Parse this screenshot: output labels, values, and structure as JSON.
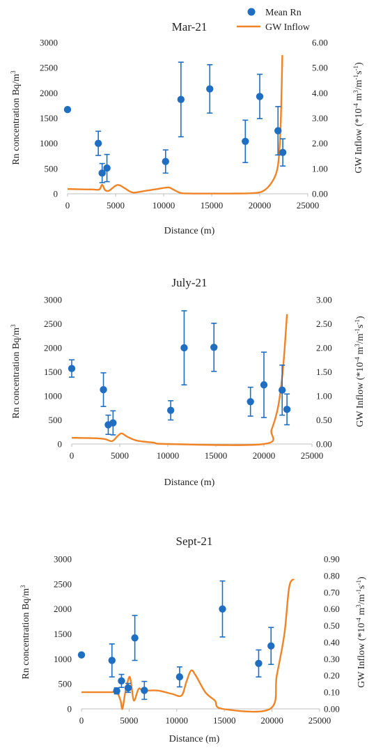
{
  "legend": {
    "mean_rn": "Mean Rn",
    "gw_inflow": "GW Inflow"
  },
  "colors": {
    "points": "#1f6ec2",
    "inflow": "#f08326",
    "axis": "#bfbfbf",
    "text": "#222222"
  },
  "chart_data": [
    {
      "type": "scatter",
      "title": "Mar-21",
      "xlabel": "Distance (m)",
      "ylabel": "Rn concentration Bq/m³",
      "y2label": "GW Inflow (*10⁻⁴ m³/m⁻¹s⁻¹)",
      "xlim": [
        0,
        25000
      ],
      "xticks": [
        "0",
        "5000",
        "10000",
        "15000",
        "20000",
        "25000"
      ],
      "ylim": [
        0,
        3000
      ],
      "yticks": [
        "0",
        "500",
        "1000",
        "1500",
        "2000",
        "2500",
        "3000"
      ],
      "y2lim": [
        0,
        6
      ],
      "y2ticks": [
        "0.00",
        "1.00",
        "2.00",
        "3.00",
        "4.00",
        "5.00",
        "6.00"
      ],
      "series": [
        {
          "name": "Mean Rn",
          "points": [
            {
              "x": 0,
              "y": 1670,
              "err": 0
            },
            {
              "x": 3200,
              "y": 1000,
              "err": 240
            },
            {
              "x": 3600,
              "y": 410,
              "err": 190
            },
            {
              "x": 4100,
              "y": 510,
              "err": 270
            },
            {
              "x": 10200,
              "y": 640,
              "err": 230
            },
            {
              "x": 11800,
              "y": 1870,
              "err": 740
            },
            {
              "x": 14800,
              "y": 2080,
              "err": 480
            },
            {
              "x": 18500,
              "y": 1040,
              "err": 420
            },
            {
              "x": 20000,
              "y": 1930,
              "err": 440
            },
            {
              "x": 21900,
              "y": 1250,
              "err": 480
            },
            {
              "x": 22400,
              "y": 820,
              "err": 270
            }
          ]
        },
        {
          "name": "GW Inflow",
          "axis": "right",
          "points": [
            [
              0,
              0.19
            ],
            [
              2500,
              0.17
            ],
            [
              3300,
              0.17
            ],
            [
              3600,
              0.36
            ],
            [
              3900,
              0.15
            ],
            [
              4300,
              0.12
            ],
            [
              5000,
              0.32
            ],
            [
              5400,
              0.34
            ],
            [
              6000,
              0.21
            ],
            [
              6800,
              0.05
            ],
            [
              8000,
              0.11
            ],
            [
              9500,
              0.2
            ],
            [
              10500,
              0.25
            ],
            [
              11000,
              0.17
            ],
            [
              11800,
              0.03
            ],
            [
              13000,
              0.01
            ],
            [
              17000,
              0.01
            ],
            [
              19000,
              0.02
            ],
            [
              20200,
              0.08
            ],
            [
              21000,
              0.32
            ],
            [
              21700,
              0.8
            ],
            [
              22000,
              1.5
            ],
            [
              22200,
              3.0
            ],
            [
              22350,
              5.5
            ]
          ]
        }
      ]
    },
    {
      "type": "scatter",
      "title": "July-21",
      "xlabel": "Distance (m)",
      "ylabel": "Rn concentration Bq/m³",
      "y2label": "GW Inflow (*10⁻⁴ m³/m⁻¹s⁻¹)",
      "xlim": [
        0,
        25000
      ],
      "xticks": [
        "0",
        "5000",
        "10000",
        "15000",
        "20000",
        "25000"
      ],
      "ylim": [
        0,
        3000
      ],
      "yticks": [
        "0",
        "500",
        "1000",
        "1500",
        "2000",
        "2500",
        "3000"
      ],
      "y2lim": [
        0,
        3
      ],
      "y2ticks": [
        "0.00",
        "0.50",
        "1.00",
        "1.50",
        "2.00",
        "2.50",
        "3.00"
      ],
      "series": [
        {
          "name": "Mean Rn",
          "points": [
            {
              "x": 0,
              "y": 1570,
              "err": 180
            },
            {
              "x": 3300,
              "y": 1130,
              "err": 350
            },
            {
              "x": 3800,
              "y": 400,
              "err": 200
            },
            {
              "x": 4300,
              "y": 440,
              "err": 250
            },
            {
              "x": 10300,
              "y": 700,
              "err": 200
            },
            {
              "x": 11700,
              "y": 2000,
              "err": 770
            },
            {
              "x": 14800,
              "y": 2010,
              "err": 500
            },
            {
              "x": 18600,
              "y": 880,
              "err": 300
            },
            {
              "x": 20000,
              "y": 1230,
              "err": 680
            },
            {
              "x": 21900,
              "y": 1120,
              "err": 520
            },
            {
              "x": 22400,
              "y": 720,
              "err": 320
            }
          ]
        },
        {
          "name": "GW Inflow",
          "axis": "right",
          "points": [
            [
              0,
              0.13
            ],
            [
              2500,
              0.12
            ],
            [
              3500,
              0.1
            ],
            [
              4200,
              0.06
            ],
            [
              4800,
              0.17
            ],
            [
              5200,
              0.22
            ],
            [
              5800,
              0.15
            ],
            [
              6800,
              0.07
            ],
            [
              8500,
              0.03
            ],
            [
              10000,
              0.0
            ],
            [
              20000,
              0.0
            ],
            [
              20800,
              0.3
            ],
            [
              21500,
              0.8
            ],
            [
              22000,
              1.6
            ],
            [
              22400,
              2.7
            ]
          ]
        }
      ]
    },
    {
      "type": "scatter",
      "title": "Sept-21",
      "xlabel": "Distance (m)",
      "ylabel": "Rn concentration Bq/m³",
      "y2label": "GW Inflow (*10⁻⁴ m³/m⁻¹s⁻¹)",
      "xlim": [
        0,
        25000
      ],
      "xticks": [
        "0",
        "5000",
        "10000",
        "15000",
        "20000",
        "25000"
      ],
      "ylim": [
        0,
        3000
      ],
      "yticks": [
        "0",
        "500",
        "1000",
        "1500",
        "2000",
        "2500",
        "3000"
      ],
      "y2lim": [
        0,
        0.9
      ],
      "y2ticks": [
        "0.00",
        "0.10",
        "0.20",
        "0.30",
        "0.40",
        "0.50",
        "0.60",
        "0.70",
        "0.80",
        "0.90"
      ],
      "series": [
        {
          "name": "Mean Rn",
          "points": [
            {
              "x": 0,
              "y": 1080,
              "err": 0
            },
            {
              "x": 3200,
              "y": 970,
              "err": 330
            },
            {
              "x": 3700,
              "y": 360,
              "err": 60
            },
            {
              "x": 4200,
              "y": 560,
              "err": 130
            },
            {
              "x": 4900,
              "y": 420,
              "err": 90
            },
            {
              "x": 5600,
              "y": 1420,
              "err": 450
            },
            {
              "x": 6600,
              "y": 370,
              "err": 180
            },
            {
              "x": 10300,
              "y": 640,
              "err": 200
            },
            {
              "x": 14800,
              "y": 2000,
              "err": 560
            },
            {
              "x": 18600,
              "y": 910,
              "err": 270
            },
            {
              "x": 19900,
              "y": 1260,
              "err": 370
            }
          ]
        },
        {
          "name": "GW Inflow",
          "axis": "right",
          "points": [
            [
              0,
              0.1
            ],
            [
              3000,
              0.1
            ],
            [
              3700,
              0.1
            ],
            [
              4100,
              0.05
            ],
            [
              4300,
              0.0
            ],
            [
              4600,
              0.1
            ],
            [
              5000,
              0.19
            ],
            [
              5200,
              0.16
            ],
            [
              5500,
              0.05
            ],
            [
              6000,
              0.12
            ],
            [
              6500,
              0.11
            ],
            [
              8000,
              0.11
            ],
            [
              9500,
              0.09
            ],
            [
              10500,
              0.08
            ],
            [
              11000,
              0.16
            ],
            [
              11500,
              0.23
            ],
            [
              12000,
              0.2
            ],
            [
              13000,
              0.1
            ],
            [
              14000,
              0.05
            ],
            [
              14800,
              0.0
            ],
            [
              19800,
              0.0
            ],
            [
              20500,
              0.2
            ],
            [
              21300,
              0.45
            ],
            [
              21800,
              0.73
            ],
            [
              22300,
              0.78
            ]
          ]
        }
      ]
    }
  ]
}
